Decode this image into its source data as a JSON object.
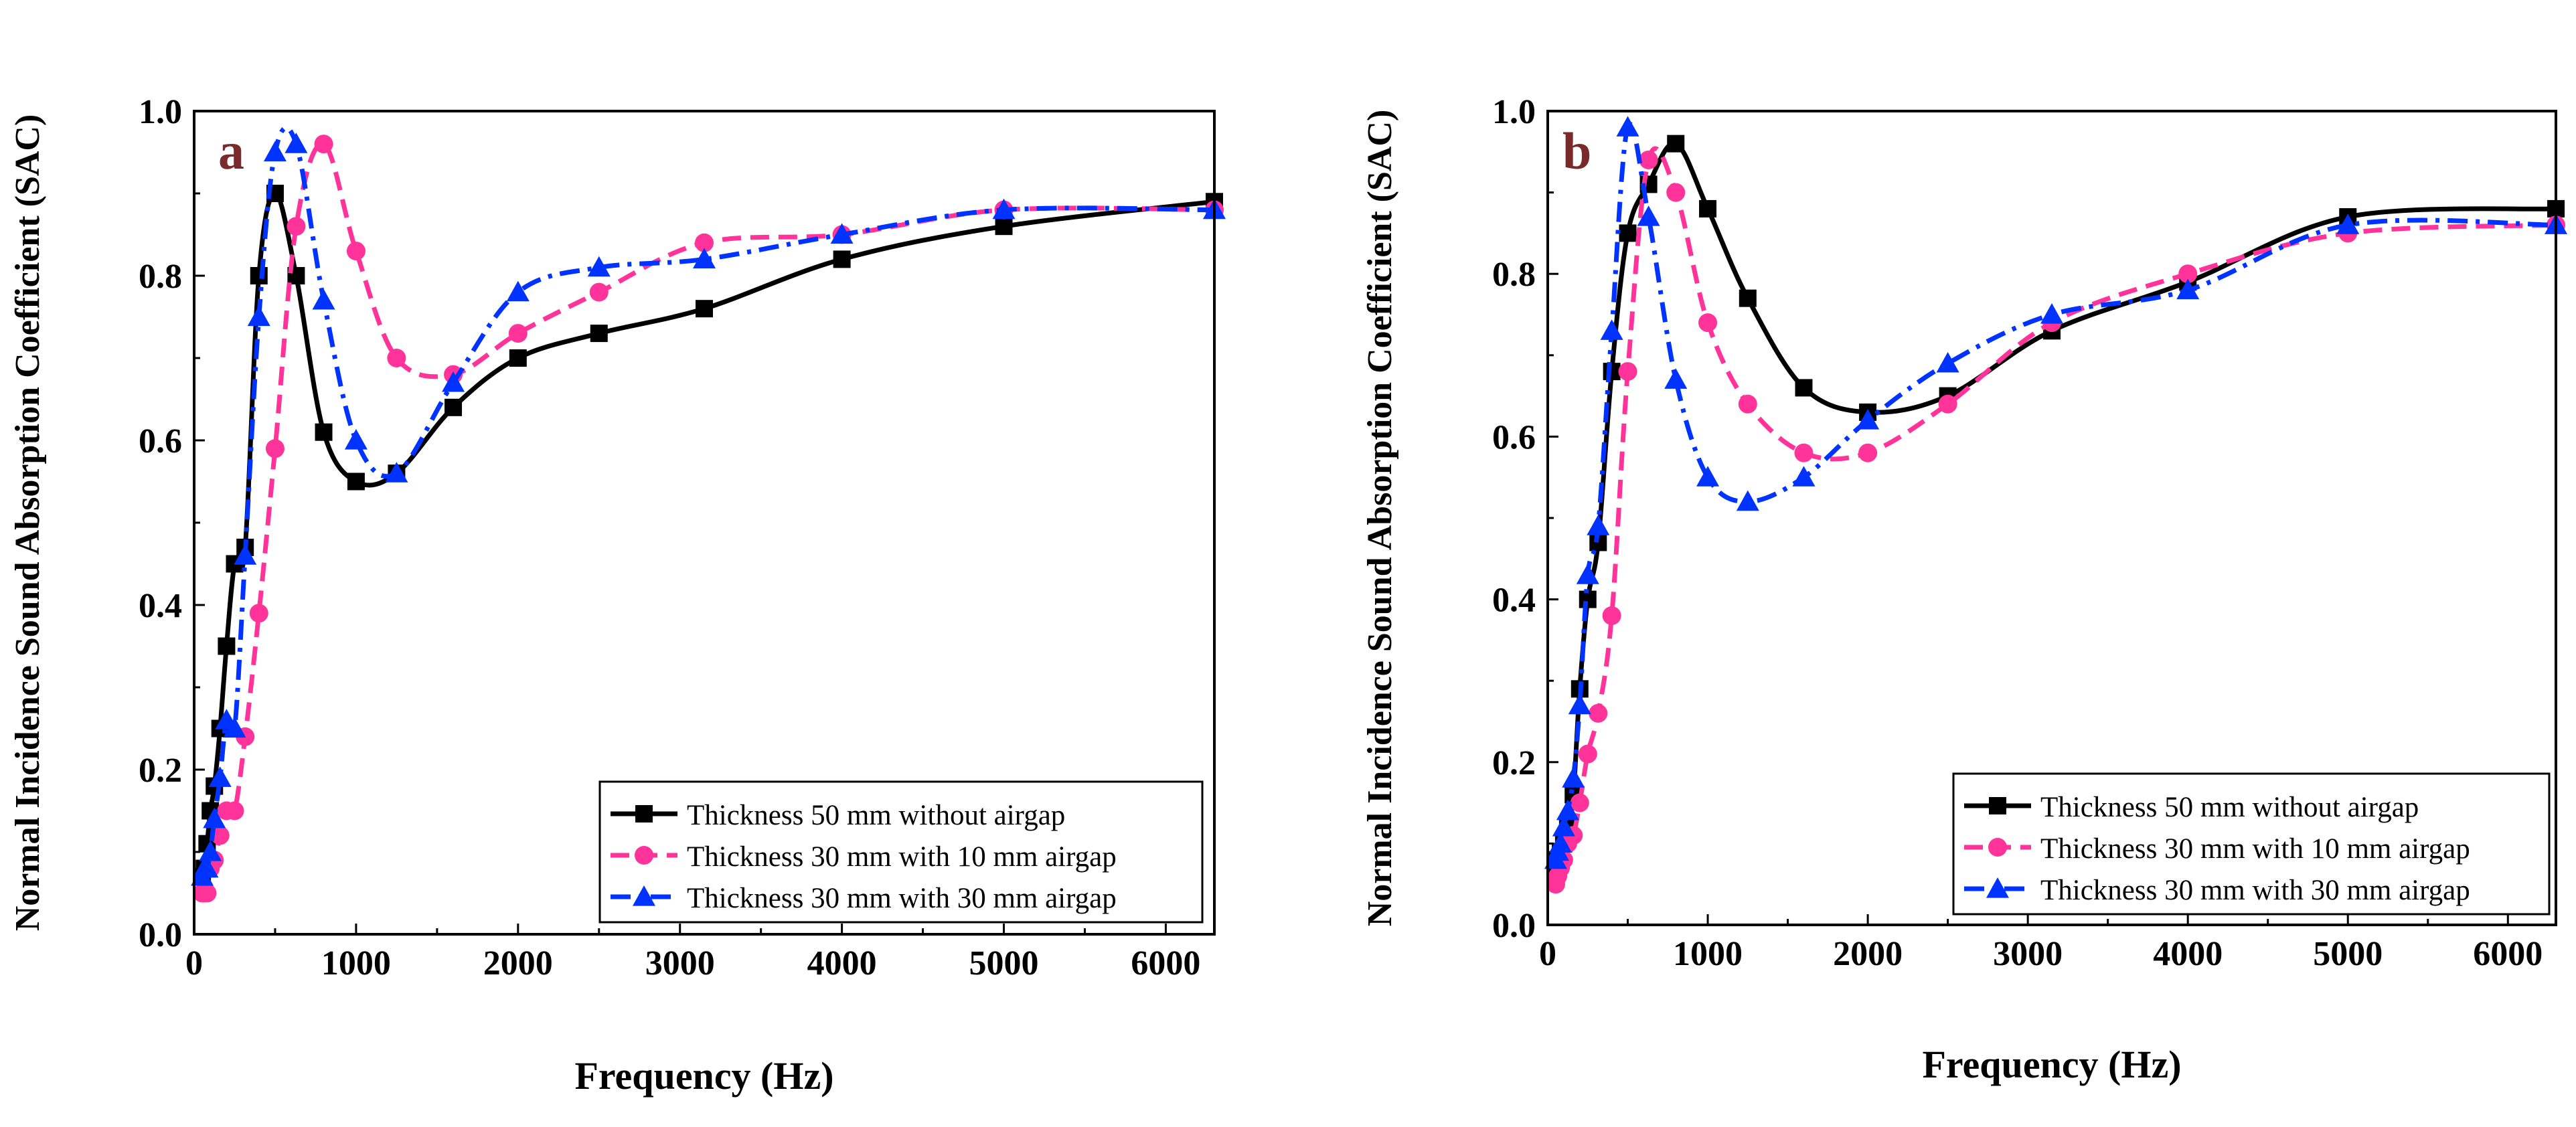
{
  "chart_data": [
    {
      "type": "line",
      "panel_label": "a",
      "xlabel": "Frequency (Hz)",
      "ylabel": "Normal Incidence Sound Absorption Coefficient (SAC)",
      "xlim": [
        0,
        6300
      ],
      "ylim": [
        0.0,
        1.0
      ],
      "xticks": [
        0,
        1000,
        2000,
        3000,
        4000,
        5000,
        6000
      ],
      "yticks": [
        0.0,
        0.2,
        0.4,
        0.6,
        0.8,
        1.0
      ],
      "grid": false,
      "legend_position": "bottom-right",
      "series": [
        {
          "name": "Thickness 50 mm without airgap",
          "color": "#000000",
          "marker": "square",
          "dash": "solid",
          "x": [
            50,
            63,
            80,
            100,
            125,
            160,
            200,
            250,
            315,
            400,
            500,
            630,
            800,
            1000,
            1250,
            1600,
            2000,
            2500,
            3150,
            4000,
            5000,
            6300
          ],
          "y": [
            0.07,
            0.08,
            0.11,
            0.15,
            0.18,
            0.25,
            0.35,
            0.45,
            0.47,
            0.8,
            0.9,
            0.8,
            0.61,
            0.55,
            0.56,
            0.64,
            0.7,
            0.73,
            0.76,
            0.82,
            0.86,
            0.89
          ]
        },
        {
          "name": "Thickness 30 mm with 10 mm airgap",
          "color": "#ff3399",
          "marker": "circle",
          "dash": "dashed",
          "x": [
            50,
            63,
            80,
            100,
            125,
            160,
            200,
            250,
            315,
            400,
            500,
            630,
            800,
            1000,
            1250,
            1600,
            2000,
            2500,
            3150,
            4000,
            5000,
            6300
          ],
          "y": [
            0.05,
            0.05,
            0.05,
            0.08,
            0.09,
            0.12,
            0.15,
            0.15,
            0.24,
            0.39,
            0.59,
            0.86,
            0.96,
            0.83,
            0.7,
            0.68,
            0.73,
            0.78,
            0.84,
            0.85,
            0.88,
            0.88
          ]
        },
        {
          "name": "Thickness 30 mm with 30 mm airgap",
          "color": "#0033ff",
          "marker": "triangle",
          "dash": "dashdot",
          "x": [
            50,
            63,
            80,
            100,
            125,
            160,
            200,
            250,
            315,
            400,
            500,
            630,
            800,
            1000,
            1250,
            1600,
            2000,
            2500,
            3150,
            4000,
            5000,
            6300
          ],
          "y": [
            0.07,
            0.08,
            0.08,
            0.1,
            0.14,
            0.19,
            0.26,
            0.25,
            0.46,
            0.75,
            0.95,
            0.96,
            0.77,
            0.6,
            0.56,
            0.67,
            0.78,
            0.81,
            0.82,
            0.85,
            0.88,
            0.88
          ]
        }
      ]
    },
    {
      "type": "line",
      "panel_label": "b",
      "xlabel": "Frequency (Hz)",
      "ylabel": "Normal Incidence Sound Absorption Coefficient (SAC)",
      "xlim": [
        0,
        6300
      ],
      "ylim": [
        0.0,
        1.0
      ],
      "xticks": [
        0,
        1000,
        2000,
        3000,
        4000,
        5000,
        6000
      ],
      "yticks": [
        0.0,
        0.2,
        0.4,
        0.6,
        0.8,
        1.0
      ],
      "grid": false,
      "legend_position": "bottom-right",
      "series": [
        {
          "name": "Thickness 50 mm without airgap",
          "color": "#000000",
          "marker": "square",
          "dash": "solid",
          "x": [
            50,
            63,
            80,
            100,
            125,
            160,
            200,
            250,
            315,
            400,
            500,
            630,
            800,
            1000,
            1250,
            1600,
            2000,
            2500,
            3150,
            4000,
            5000,
            6300
          ],
          "y": [
            0.07,
            0.08,
            0.09,
            0.1,
            0.12,
            0.16,
            0.29,
            0.4,
            0.47,
            0.68,
            0.85,
            0.91,
            0.96,
            0.88,
            0.77,
            0.66,
            0.63,
            0.65,
            0.73,
            0.79,
            0.87,
            0.88
          ]
        },
        {
          "name": "Thickness 30 mm with 10 mm airgap",
          "color": "#ff3399",
          "marker": "circle",
          "dash": "dashed",
          "x": [
            50,
            63,
            80,
            100,
            125,
            160,
            200,
            250,
            315,
            400,
            500,
            630,
            800,
            1000,
            1250,
            1600,
            2000,
            2500,
            3150,
            4000,
            5000,
            6300
          ],
          "y": [
            0.05,
            0.06,
            0.07,
            0.08,
            0.1,
            0.11,
            0.15,
            0.21,
            0.26,
            0.38,
            0.68,
            0.94,
            0.9,
            0.74,
            0.64,
            0.58,
            0.58,
            0.64,
            0.74,
            0.8,
            0.85,
            0.86
          ]
        },
        {
          "name": "Thickness 30 mm with 30 mm airgap",
          "color": "#0033ff",
          "marker": "triangle",
          "dash": "dashdot",
          "x": [
            50,
            63,
            80,
            100,
            125,
            160,
            200,
            250,
            315,
            400,
            500,
            630,
            800,
            1000,
            1250,
            1600,
            2000,
            2500,
            3150,
            4000,
            5000,
            6300
          ],
          "y": [
            0.08,
            0.09,
            0.1,
            0.12,
            0.14,
            0.18,
            0.27,
            0.43,
            0.49,
            0.73,
            0.98,
            0.87,
            0.67,
            0.55,
            0.52,
            0.55,
            0.62,
            0.69,
            0.75,
            0.78,
            0.86,
            0.86
          ]
        }
      ]
    }
  ]
}
